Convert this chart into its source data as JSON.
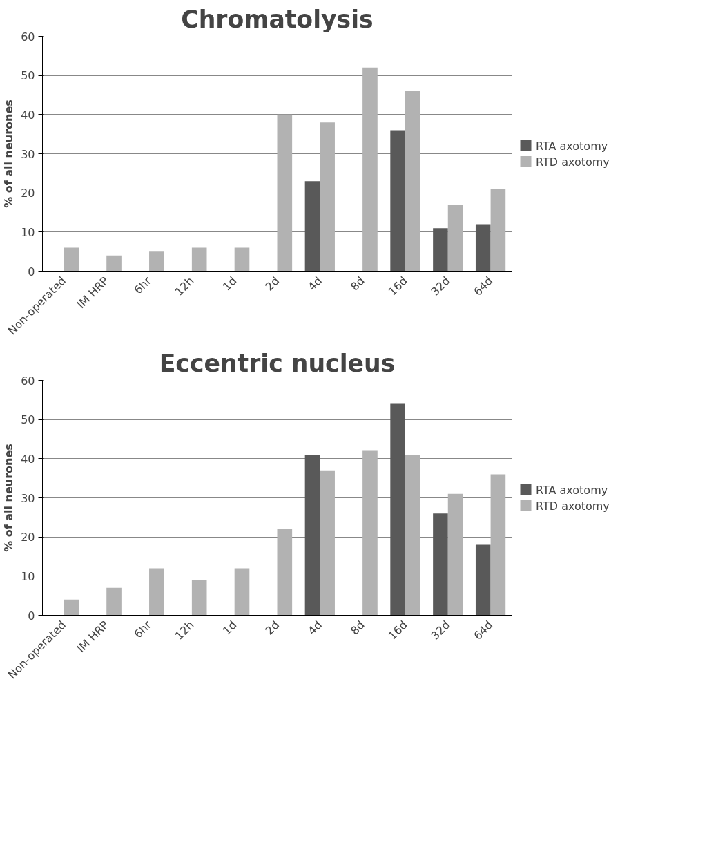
{
  "chart_data": [
    {
      "type": "bar",
      "title": "Chromatolysis",
      "ylabel": "% of all neurones",
      "categories": [
        "Non-operated",
        "IM HRP",
        "6hr",
        "12h",
        "1d",
        "2d",
        "4d",
        "8d",
        "16d",
        "32d",
        "64d"
      ],
      "series": [
        {
          "name": "RTA axotomy",
          "color": "#595959",
          "values": [
            null,
            null,
            null,
            null,
            null,
            null,
            23,
            null,
            36,
            11,
            12
          ]
        },
        {
          "name": "RTD axotomy",
          "color": "#b2b2b2",
          "values": [
            6,
            4,
            5,
            6,
            6,
            40,
            38,
            52,
            46,
            17,
            21
          ]
        }
      ],
      "ylim": [
        0,
        60
      ],
      "yticks": [
        0,
        10,
        20,
        30,
        40,
        50,
        60
      ],
      "grid": "y",
      "legend": "right"
    },
    {
      "type": "bar",
      "title": "Eccentric nucleus",
      "ylabel": "% of all neurones",
      "categories": [
        "Non-operated",
        "IM HRP",
        "6hr",
        "12h",
        "1d",
        "2d",
        "4d",
        "8d",
        "16d",
        "32d",
        "64d"
      ],
      "series": [
        {
          "name": "RTA axotomy",
          "color": "#595959",
          "values": [
            null,
            null,
            null,
            null,
            null,
            null,
            41,
            null,
            54,
            26,
            18
          ]
        },
        {
          "name": "RTD axotomy",
          "color": "#b2b2b2",
          "values": [
            4,
            7,
            12,
            9,
            12,
            22,
            37,
            42,
            41,
            31,
            36
          ]
        }
      ],
      "ylim": [
        0,
        60
      ],
      "yticks": [
        0,
        10,
        20,
        30,
        40,
        50,
        60
      ],
      "grid": "y",
      "legend": "right"
    }
  ]
}
